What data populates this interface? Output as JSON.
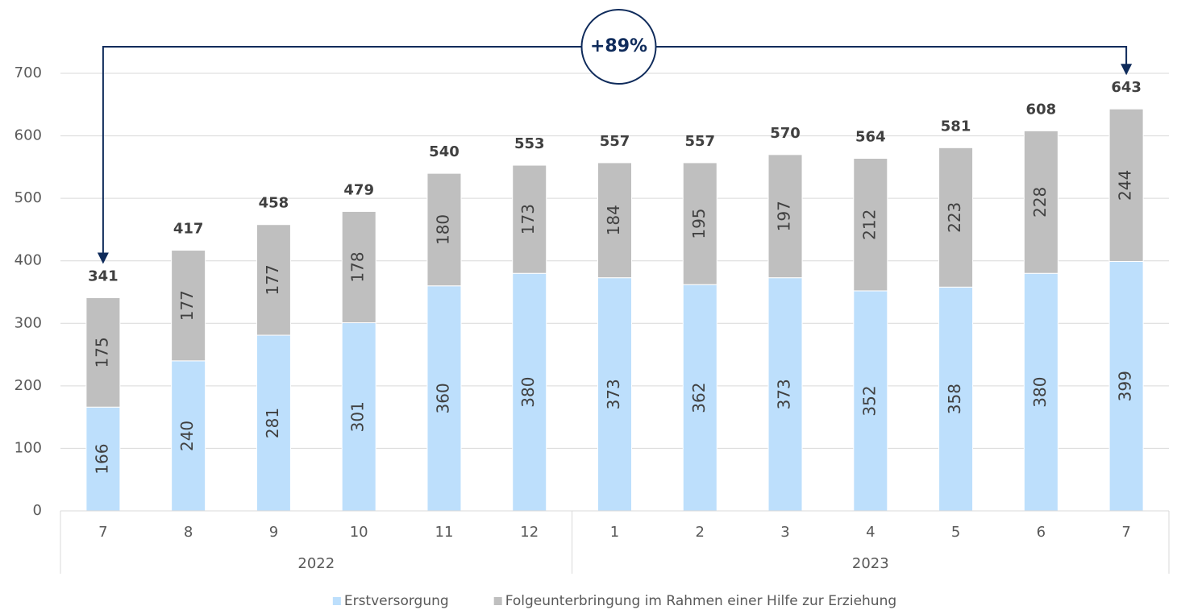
{
  "chart_data": {
    "type": "bar",
    "stacked": true,
    "groups": [
      {
        "label": "2022",
        "categories": [
          "7",
          "8",
          "9",
          "10",
          "11",
          "12"
        ]
      },
      {
        "label": "2023",
        "categories": [
          "1",
          "2",
          "3",
          "4",
          "5",
          "6",
          "7"
        ]
      }
    ],
    "series": [
      {
        "name": "Erstversorgung",
        "color": "#bddffc",
        "values": [
          166,
          240,
          281,
          301,
          360,
          380,
          373,
          362,
          373,
          352,
          358,
          380,
          399
        ]
      },
      {
        "name": "Folgeunterbringung im Rahmen einer Hilfe zur Erziehung",
        "color": "#bfbfbf",
        "values": [
          175,
          177,
          177,
          178,
          180,
          173,
          184,
          195,
          197,
          212,
          223,
          228,
          244
        ]
      }
    ],
    "totals": [
      341,
      417,
      458,
      479,
      540,
      553,
      557,
      557,
      570,
      564,
      581,
      608,
      643
    ],
    "annotation": "+89%",
    "ylim": [
      0,
      700
    ],
    "yticks": [
      0,
      100,
      200,
      300,
      400,
      500,
      600,
      700
    ],
    "grid": true,
    "legend": "bottom"
  }
}
